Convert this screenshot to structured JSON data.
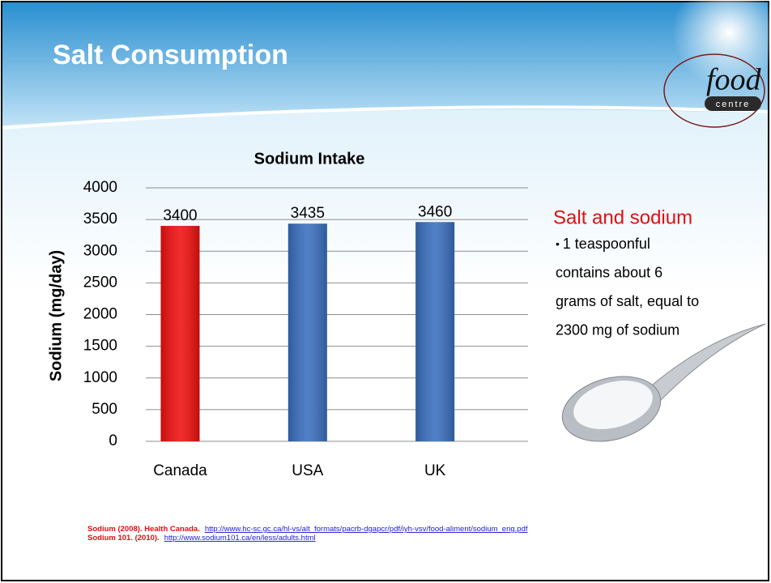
{
  "slide": {
    "title": "Salt Consumption",
    "logo": {
      "word": "food",
      "tag": "centre"
    }
  },
  "chart_data": {
    "type": "bar",
    "title": "Sodium Intake",
    "y_label": "Sodium (mg/day)",
    "categories": [
      "Canada",
      "USA",
      "UK"
    ],
    "values": [
      3400,
      3435,
      3460
    ],
    "colors": [
      "#f01010",
      "#3a6fbf",
      "#3a6fbf"
    ],
    "ylim": [
      0,
      4000
    ],
    "yticks": [
      0,
      500,
      1000,
      1500,
      2000,
      2500,
      3000,
      3500,
      4000
    ],
    "grid": true
  },
  "side_note": {
    "heading": "Salt and sodium",
    "lines": [
      "1 teaspoonful",
      "contains about 6",
      "grams of salt, equal to",
      "2300 mg of sodium"
    ]
  },
  "references": [
    {
      "source": "Sodium (2008). Health Canada.",
      "url": "http://www.hc-sc.gc.ca/hl-vs/alt_formats/pacrb-dgapcr/pdf/iyh-vsv/food-aliment/sodium_eng.pdf"
    },
    {
      "source": "Sodium 101. (2010).",
      "url": "http://www.sodium101.ca/en/less/adults.html"
    }
  ]
}
